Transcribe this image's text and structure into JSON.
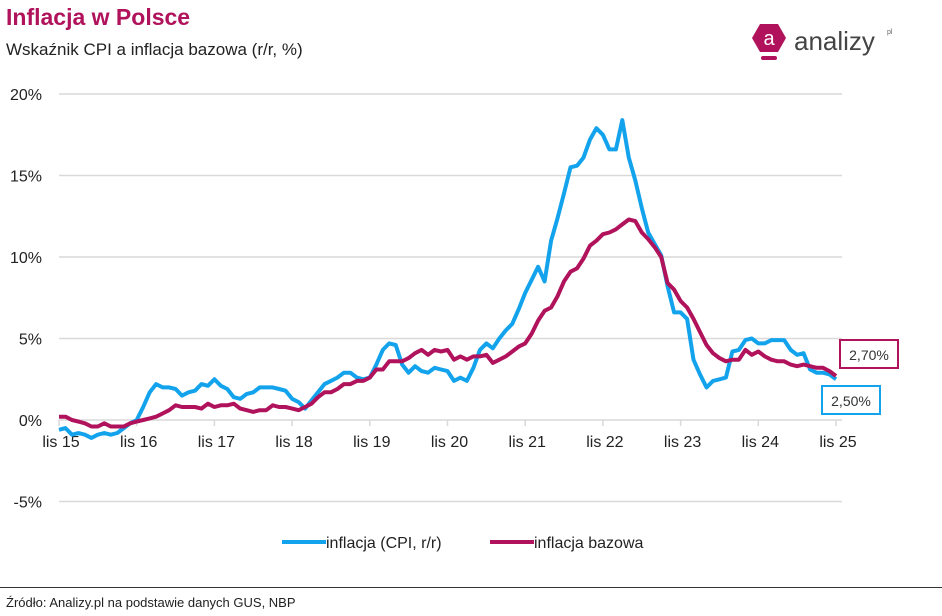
{
  "header": {
    "title": "Inflacja w Polsce",
    "subtitle": "Wskaźnik CPI a inflacja bazowa (r/r, %)"
  },
  "logo": {
    "text": "analizy",
    "suffix": "pl",
    "letter": "a",
    "color": "#b0125b"
  },
  "source": "Źródło: Analizy.pl na podstawie danych GUS, NBP",
  "chart_data": {
    "type": "line",
    "title": "",
    "xlabel": "",
    "ylabel": "",
    "ylim": [
      -5,
      20
    ],
    "yticks": [
      20,
      15,
      10,
      5,
      0,
      -5
    ],
    "ytick_labels": [
      "20%",
      "15%",
      "10%",
      "5%",
      "0%",
      "-5%"
    ],
    "x_start": "2015-11",
    "x_end": "2025-11",
    "frequency": "monthly",
    "xtick_labels": [
      "lis 15",
      "lis 16",
      "lis 17",
      "lis 18",
      "lis 19",
      "lis 20",
      "lis 21",
      "lis 22",
      "lis 23",
      "lis 24",
      "lis 25"
    ],
    "grid": true,
    "legend": "bottom",
    "series": [
      {
        "name": "inflacja (CPI, r/r)",
        "color": "#13a3ec",
        "end_label": "2,50%",
        "values": [
          -0.6,
          -0.5,
          -0.9,
          -0.8,
          -0.9,
          -1.1,
          -0.9,
          -0.8,
          -0.9,
          -0.8,
          -0.5,
          -0.2,
          0.0,
          0.8,
          1.7,
          2.2,
          2.0,
          2.0,
          1.9,
          1.5,
          1.7,
          1.8,
          2.2,
          2.1,
          2.5,
          2.1,
          1.9,
          1.4,
          1.3,
          1.6,
          1.7,
          2.0,
          2.0,
          2.0,
          1.9,
          1.8,
          1.3,
          1.1,
          0.7,
          1.2,
          1.7,
          2.2,
          2.4,
          2.6,
          2.9,
          2.9,
          2.6,
          2.5,
          2.6,
          3.4,
          4.3,
          4.7,
          4.6,
          3.4,
          2.9,
          3.3,
          3.0,
          2.9,
          3.2,
          3.1,
          3.0,
          2.4,
          2.6,
          2.4,
          3.2,
          4.3,
          4.7,
          4.4,
          5.0,
          5.5,
          5.9,
          6.8,
          7.8,
          8.6,
          9.4,
          8.5,
          11.0,
          12.4,
          13.9,
          15.5,
          15.6,
          16.1,
          17.2,
          17.9,
          17.5,
          16.6,
          16.6,
          18.4,
          16.1,
          14.7,
          13.0,
          11.5,
          10.8,
          10.1,
          8.2,
          6.6,
          6.6,
          6.2,
          3.7,
          2.8,
          2.0,
          2.4,
          2.5,
          2.6,
          4.2,
          4.3,
          4.9,
          5.0,
          4.7,
          4.7,
          4.9,
          4.9,
          4.9,
          4.3,
          4.0,
          4.1,
          3.1,
          2.9,
          2.9,
          2.8,
          2.5
        ]
      },
      {
        "name": "inflacja bazowa",
        "color": "#b0125b",
        "end_label": "2,70%",
        "values": [
          0.2,
          0.2,
          0.0,
          -0.1,
          -0.2,
          -0.4,
          -0.4,
          -0.2,
          -0.4,
          -0.4,
          -0.4,
          -0.2,
          -0.1,
          0.0,
          0.1,
          0.2,
          0.4,
          0.6,
          0.9,
          0.8,
          0.8,
          0.8,
          0.7,
          1.0,
          0.8,
          0.9,
          0.9,
          1.0,
          0.7,
          0.6,
          0.5,
          0.6,
          0.6,
          0.9,
          0.8,
          0.8,
          0.7,
          0.6,
          0.8,
          1.0,
          1.4,
          1.7,
          1.7,
          1.9,
          2.2,
          2.2,
          2.4,
          2.4,
          2.6,
          3.1,
          3.1,
          3.6,
          3.6,
          3.6,
          3.8,
          4.1,
          4.3,
          4.0,
          4.3,
          4.2,
          4.3,
          3.7,
          3.9,
          3.7,
          3.9,
          3.9,
          4.0,
          3.5,
          3.7,
          3.9,
          4.2,
          4.5,
          4.7,
          5.3,
          6.1,
          6.7,
          6.9,
          7.6,
          8.5,
          9.1,
          9.3,
          9.9,
          10.7,
          11.0,
          11.4,
          11.5,
          11.7,
          12.0,
          12.3,
          12.2,
          11.5,
          11.1,
          10.6,
          10.0,
          8.4,
          8.0,
          7.3,
          6.9,
          6.2,
          5.4,
          4.6,
          4.1,
          3.8,
          3.6,
          3.7,
          3.7,
          4.3,
          4.0,
          4.2,
          3.9,
          3.7,
          3.6,
          3.6,
          3.4,
          3.3,
          3.4,
          3.3,
          3.2,
          3.2,
          3.0,
          2.7
        ]
      }
    ]
  }
}
